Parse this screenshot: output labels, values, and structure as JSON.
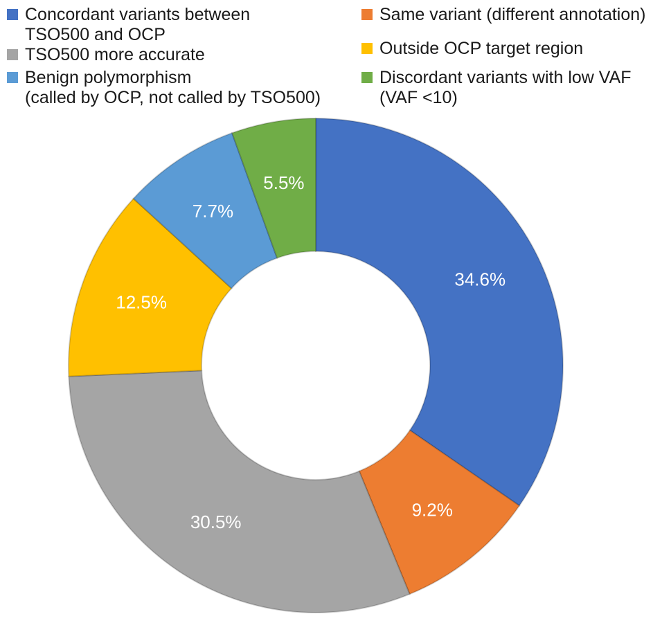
{
  "chart_data": {
    "type": "pie",
    "style": "donut",
    "title": "",
    "slices": [
      {
        "name": "Concordant variants between\nTSO500 and OCP",
        "value": 34.6,
        "label": "34.6%",
        "color": "#4472c4"
      },
      {
        "name": "Same variant (different annotation)",
        "value": 9.2,
        "label": "9.2%",
        "color": "#ed7d31"
      },
      {
        "name": "TSO500 more accurate",
        "value": 30.5,
        "label": "30.5%",
        "color": "#a5a5a5"
      },
      {
        "name": "Outside OCP target region",
        "value": 12.5,
        "label": "12.5%",
        "color": "#ffc000"
      },
      {
        "name": "Benign polymorphism\n(called by OCP, not called by TSO500)",
        "value": 7.7,
        "label": "7.7%",
        "color": "#5b9bd5"
      },
      {
        "name": "Discordant variants with low VAF\n(VAF <10)",
        "value": 5.5,
        "label": "5.5%",
        "color": "#70ad47"
      }
    ],
    "legend_position": "top",
    "label_color": "#ffffff"
  }
}
